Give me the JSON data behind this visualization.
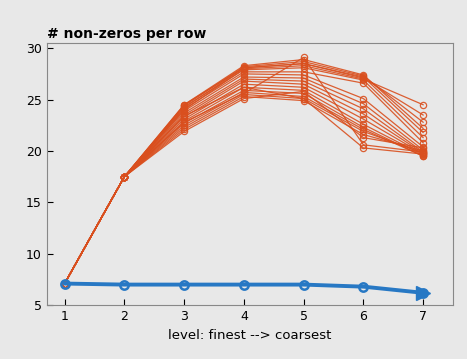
{
  "title": "# non-zeros per row",
  "xlabel": "level: finest --> coarsest",
  "xlim": [
    0.7,
    7.5
  ],
  "ylim": [
    5,
    30.5
  ],
  "yticks": [
    5,
    10,
    15,
    20,
    25,
    30
  ],
  "xticks": [
    1,
    2,
    3,
    4,
    5,
    6,
    7
  ],
  "bg_color": "#e8e8e8",
  "orange_color": "#d94f1e",
  "blue_color": "#2778c4",
  "blue_line": [
    7.1,
    7.0,
    7.0,
    7.0,
    7.0,
    6.8,
    6.2
  ],
  "orange_lines": [
    [
      7.1,
      17.5,
      24.0,
      28.0,
      28.3,
      27.0,
      24.5
    ],
    [
      7.1,
      17.5,
      24.2,
      28.1,
      28.5,
      27.1,
      23.5
    ],
    [
      7.1,
      17.5,
      24.4,
      28.2,
      28.7,
      27.3,
      22.8
    ],
    [
      7.1,
      17.5,
      24.5,
      28.3,
      28.9,
      27.4,
      22.2
    ],
    [
      7.1,
      17.5,
      24.5,
      28.1,
      28.5,
      27.2,
      21.8
    ],
    [
      7.1,
      17.5,
      24.3,
      27.9,
      28.1,
      26.9,
      21.3
    ],
    [
      7.1,
      17.5,
      24.1,
      27.7,
      27.7,
      26.6,
      20.8
    ],
    [
      7.1,
      17.5,
      23.9,
      27.5,
      27.4,
      25.1,
      20.4
    ],
    [
      7.1,
      17.5,
      23.7,
      27.2,
      27.1,
      24.6,
      20.1
    ],
    [
      7.1,
      17.5,
      23.5,
      27.0,
      26.8,
      24.1,
      19.9
    ],
    [
      7.1,
      17.5,
      23.3,
      26.8,
      26.5,
      23.6,
      19.8
    ],
    [
      7.1,
      17.5,
      23.1,
      26.5,
      26.2,
      23.1,
      19.7
    ],
    [
      7.1,
      17.5,
      22.9,
      26.2,
      25.9,
      22.6,
      19.6
    ],
    [
      7.1,
      17.5,
      22.7,
      25.9,
      25.6,
      22.3,
      19.5
    ],
    [
      7.1,
      17.5,
      22.5,
      25.7,
      25.3,
      22.1,
      19.5
    ],
    [
      7.1,
      17.5,
      22.3,
      25.5,
      25.1,
      21.9,
      19.8
    ],
    [
      7.1,
      17.5,
      22.1,
      25.3,
      24.9,
      21.6,
      20.0
    ],
    [
      7.1,
      17.5,
      21.9,
      25.1,
      25.8,
      21.3,
      20.3
    ],
    [
      7.1,
      17.5,
      22.8,
      25.6,
      29.1,
      20.6,
      19.9
    ],
    [
      7.1,
      17.5,
      23.4,
      26.2,
      25.1,
      20.3,
      19.7
    ]
  ]
}
